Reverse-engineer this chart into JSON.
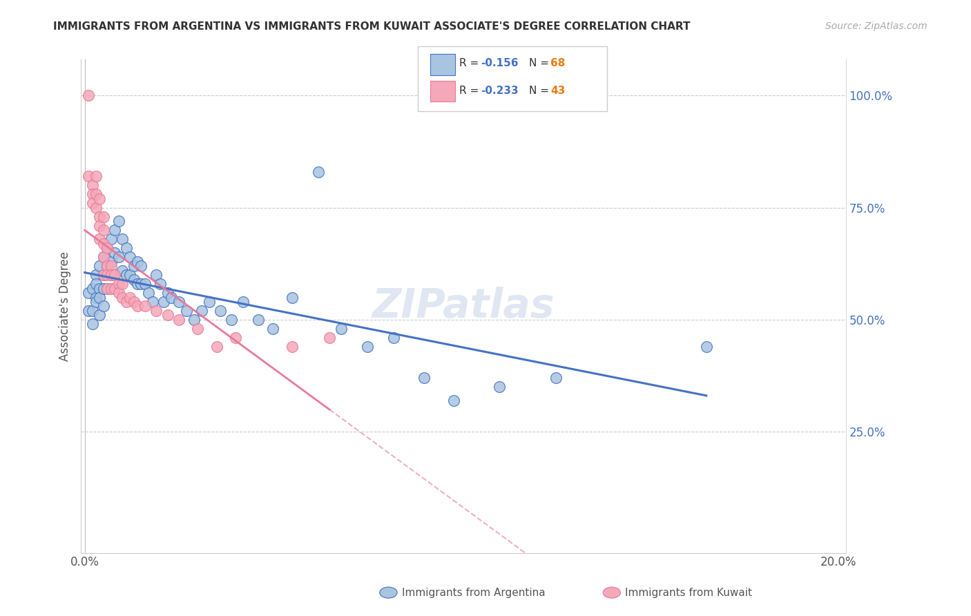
{
  "title": "IMMIGRANTS FROM ARGENTINA VS IMMIGRANTS FROM KUWAIT ASSOCIATE'S DEGREE CORRELATION CHART",
  "source": "Source: ZipAtlas.com",
  "ylabel": "Associate's Degree",
  "xlim": [
    -0.001,
    0.202
  ],
  "ylim": [
    -0.02,
    1.08
  ],
  "xticks": [
    0.0,
    0.05,
    0.1,
    0.15,
    0.2
  ],
  "xticklabels": [
    "0.0%",
    "",
    "",
    "",
    "20.0%"
  ],
  "yticks_right": [
    0.25,
    0.5,
    0.75,
    1.0
  ],
  "ytick_right_labels": [
    "25.0%",
    "50.0%",
    "75.0%",
    "100.0%"
  ],
  "legend_r_argentina": "-0.156",
  "legend_n_argentina": "68",
  "legend_r_kuwait": "-0.233",
  "legend_n_kuwait": "43",
  "color_argentina": "#a8c4e0",
  "color_kuwait": "#f4a8b8",
  "line_color_argentina": "#4472c4",
  "line_color_kuwait": "#e8799a",
  "watermark": "ZIPatlas",
  "argentina_x": [
    0.001,
    0.001,
    0.002,
    0.002,
    0.002,
    0.003,
    0.003,
    0.003,
    0.003,
    0.004,
    0.004,
    0.004,
    0.004,
    0.005,
    0.005,
    0.005,
    0.005,
    0.006,
    0.006,
    0.006,
    0.007,
    0.007,
    0.007,
    0.008,
    0.008,
    0.008,
    0.009,
    0.009,
    0.01,
    0.01,
    0.011,
    0.011,
    0.012,
    0.012,
    0.013,
    0.013,
    0.014,
    0.014,
    0.015,
    0.015,
    0.016,
    0.017,
    0.018,
    0.019,
    0.02,
    0.021,
    0.022,
    0.023,
    0.025,
    0.027,
    0.029,
    0.031,
    0.033,
    0.036,
    0.039,
    0.042,
    0.046,
    0.05,
    0.055,
    0.062,
    0.068,
    0.075,
    0.082,
    0.09,
    0.098,
    0.11,
    0.125,
    0.165
  ],
  "argentina_y": [
    0.56,
    0.52,
    0.57,
    0.52,
    0.49,
    0.55,
    0.6,
    0.58,
    0.54,
    0.62,
    0.57,
    0.55,
    0.51,
    0.64,
    0.6,
    0.57,
    0.53,
    0.66,
    0.62,
    0.57,
    0.68,
    0.63,
    0.6,
    0.7,
    0.65,
    0.6,
    0.72,
    0.64,
    0.68,
    0.61,
    0.66,
    0.6,
    0.64,
    0.6,
    0.62,
    0.59,
    0.63,
    0.58,
    0.62,
    0.58,
    0.58,
    0.56,
    0.54,
    0.6,
    0.58,
    0.54,
    0.56,
    0.55,
    0.54,
    0.52,
    0.5,
    0.52,
    0.54,
    0.52,
    0.5,
    0.54,
    0.5,
    0.48,
    0.55,
    0.83,
    0.48,
    0.44,
    0.46,
    0.37,
    0.32,
    0.35,
    0.37,
    0.44
  ],
  "kuwait_x": [
    0.001,
    0.001,
    0.002,
    0.002,
    0.002,
    0.003,
    0.003,
    0.003,
    0.004,
    0.004,
    0.004,
    0.004,
    0.005,
    0.005,
    0.005,
    0.005,
    0.005,
    0.006,
    0.006,
    0.006,
    0.006,
    0.007,
    0.007,
    0.007,
    0.008,
    0.008,
    0.009,
    0.009,
    0.01,
    0.01,
    0.011,
    0.012,
    0.013,
    0.014,
    0.016,
    0.019,
    0.022,
    0.025,
    0.03,
    0.035,
    0.04,
    0.055,
    0.065
  ],
  "kuwait_y": [
    1.0,
    0.82,
    0.8,
    0.78,
    0.76,
    0.82,
    0.78,
    0.75,
    0.77,
    0.73,
    0.71,
    0.68,
    0.73,
    0.7,
    0.67,
    0.64,
    0.6,
    0.66,
    0.62,
    0.6,
    0.57,
    0.62,
    0.6,
    0.57,
    0.6,
    0.57,
    0.58,
    0.56,
    0.58,
    0.55,
    0.54,
    0.55,
    0.54,
    0.53,
    0.53,
    0.52,
    0.51,
    0.5,
    0.48,
    0.44,
    0.46,
    0.44,
    0.46
  ]
}
